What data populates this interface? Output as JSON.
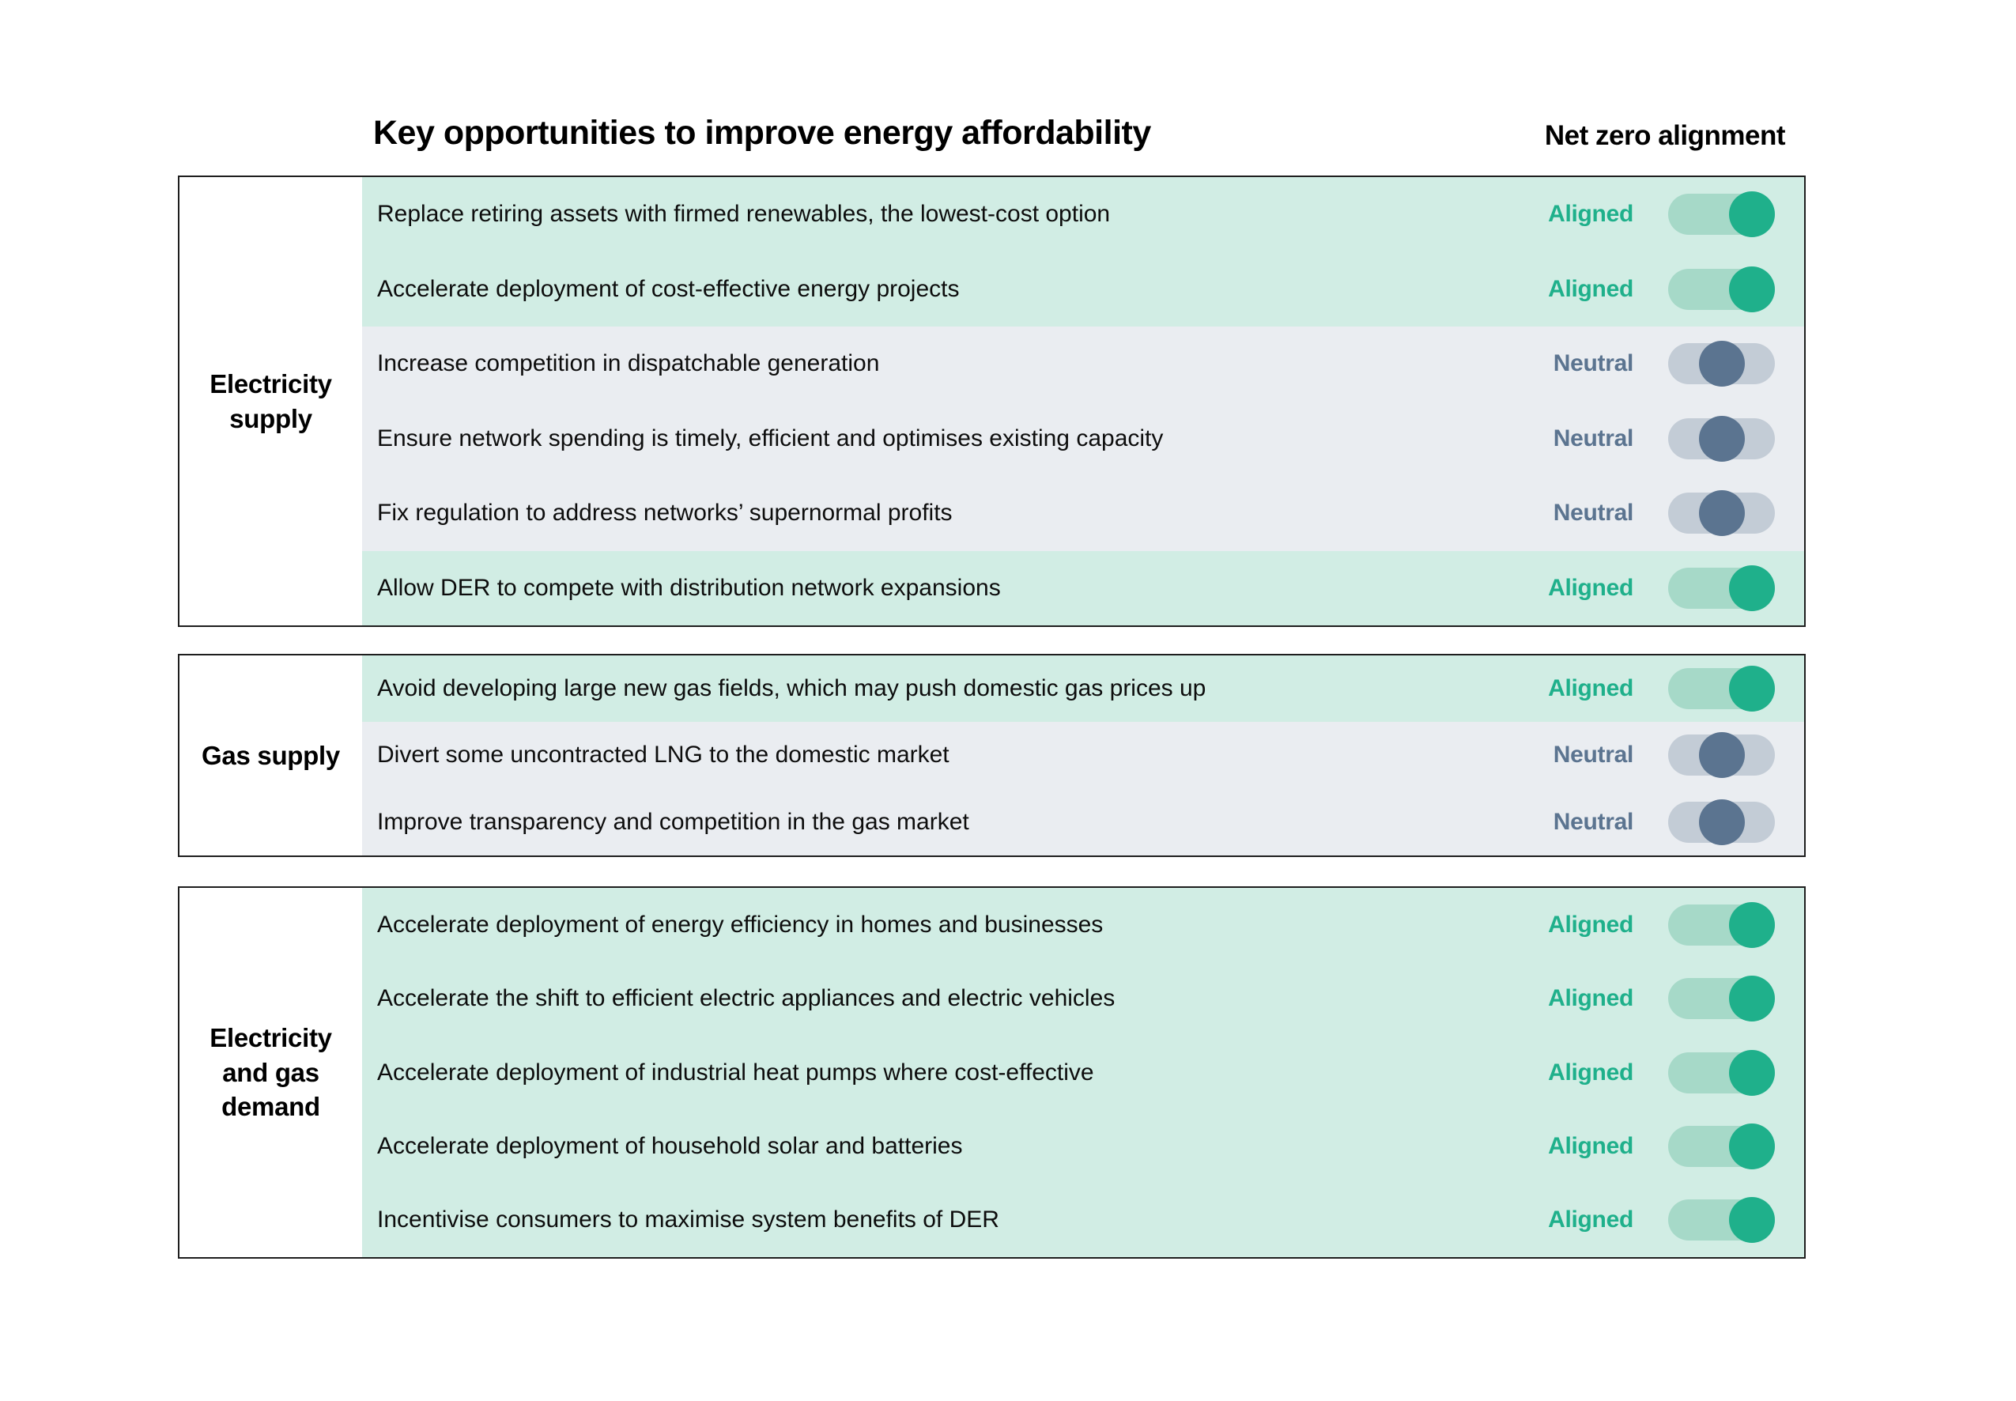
{
  "header": {
    "title": "Key opportunities to improve energy affordability",
    "alignment_column_header": "Net zero alignment"
  },
  "colors": {
    "aligned_row_bg": "#d1ede4",
    "aligned_track": "#a6d9c8",
    "aligned_knob": "#1fb08b",
    "aligned_text": "#1fb08b",
    "neutral_row_bg": "#eaedf1",
    "neutral_track": "#c3ccd6",
    "neutral_knob": "#5b7490",
    "neutral_text": "#5b7490",
    "border_color": "#1e1e1e"
  },
  "sections": [
    {
      "label": "Electricity supply",
      "rows": [
        {
          "text": "Replace retiring assets with firmed renewables, the lowest-cost option",
          "status": "Aligned"
        },
        {
          "text": "Accelerate deployment of cost-effective energy projects",
          "status": "Aligned"
        },
        {
          "text": "Increase competition in dispatchable generation",
          "status": "Neutral"
        },
        {
          "text": "Ensure network spending is timely, efficient and optimises existing capacity",
          "status": "Neutral"
        },
        {
          "text": "Fix regulation to address networks’ supernormal profits",
          "status": "Neutral"
        },
        {
          "text": "Allow DER to compete with distribution network expansions",
          "status": "Aligned"
        }
      ]
    },
    {
      "label": "Gas supply",
      "rows": [
        {
          "text": "Avoid developing large new gas fields, which may push domestic gas prices up",
          "status": "Aligned"
        },
        {
          "text": "Divert some uncontracted LNG to the domestic market",
          "status": "Neutral"
        },
        {
          "text": "Improve transparency and competition in the gas market",
          "status": "Neutral"
        }
      ]
    },
    {
      "label": "Electricity and gas demand",
      "rows": [
        {
          "text": "Accelerate deployment of energy efficiency in homes and businesses",
          "status": "Aligned"
        },
        {
          "text": "Accelerate the shift to efficient electric appliances and electric vehicles",
          "status": "Aligned"
        },
        {
          "text": "Accelerate deployment of industrial heat pumps where cost-effective",
          "status": "Aligned"
        },
        {
          "text": "Accelerate deployment of household solar and batteries",
          "status": "Aligned"
        },
        {
          "text": "Incentivise consumers to maximise system benefits of DER",
          "status": "Aligned"
        }
      ]
    }
  ]
}
